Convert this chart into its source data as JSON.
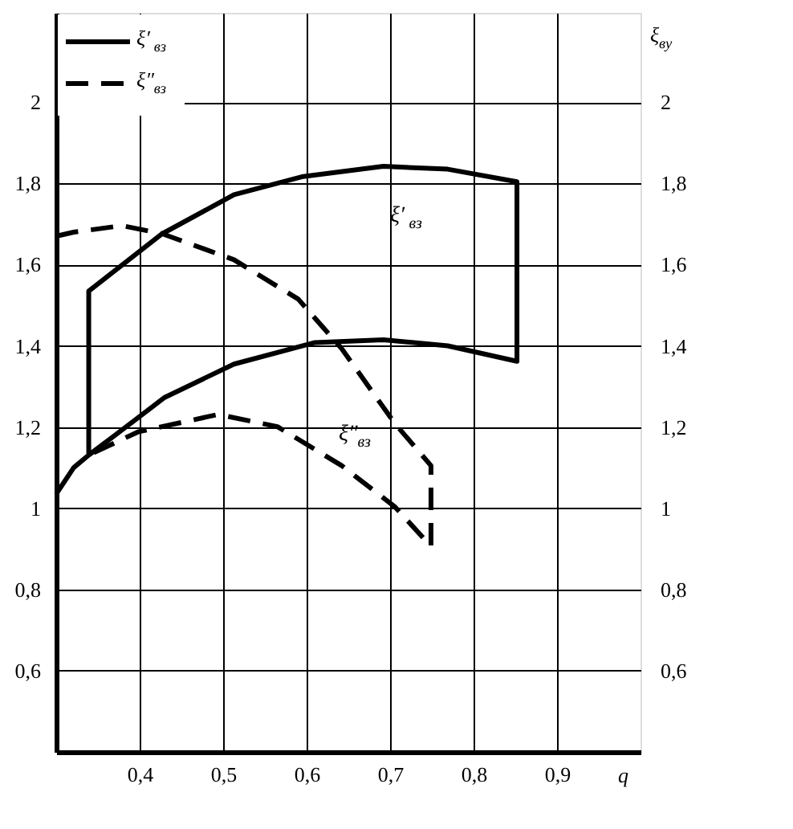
{
  "chart_data": {
    "type": "line",
    "xlabel": "q",
    "y2label": "ξ$_{ву}$",
    "xlim": [
      0.3,
      1.0
    ],
    "ylim": [
      0.4,
      2.22
    ],
    "y2lim": [
      0.4,
      2.22
    ],
    "xticks": [
      {
        "value": 0.4,
        "label": "0,4"
      },
      {
        "value": 0.5,
        "label": "0,5"
      },
      {
        "value": 0.6,
        "label": "0,6"
      },
      {
        "value": 0.7,
        "label": "0,7"
      },
      {
        "value": 0.8,
        "label": "0,8"
      },
      {
        "value": 0.9,
        "label": "0,9"
      }
    ],
    "yticks": [
      {
        "value": 0.6,
        "label": "0,6"
      },
      {
        "value": 0.8,
        "label": "0,8"
      },
      1,
      {
        "value": 1.2,
        "label": "1,2"
      },
      {
        "value": 1.4,
        "label": "1,4"
      },
      {
        "value": 1.6,
        "label": "1,6"
      },
      {
        "value": 1.8,
        "label": "1,8"
      },
      2
    ],
    "y2ticks": [
      {
        "value": 0.6,
        "label": "0,6"
      },
      {
        "value": 0.8,
        "label": "0,8"
      },
      1,
      {
        "value": 1.2,
        "label": "1,2"
      },
      {
        "value": 1.4,
        "label": "1,4"
      },
      {
        "value": 1.6,
        "label": "1,6"
      },
      {
        "value": 1.8,
        "label": "1,8"
      },
      2
    ],
    "grid": true,
    "legend": "top left",
    "marker": "none",
    "series": [
      {
        "name": "ξ′$_{вз}$",
        "color": "#000000",
        "line_style": "solid",
        "x": [
          0.3,
          0.321,
          0.339,
          0.339,
          0.427,
          0.513,
          0.596,
          0.692,
          0.769,
          0.852,
          0.852,
          0.769,
          0.692,
          0.61,
          0.513,
          0.43,
          0.372,
          0.339
        ],
        "values": [
          1.035,
          1.1,
          1.131,
          1.535,
          1.676,
          1.772,
          1.817,
          1.842,
          1.835,
          1.804,
          1.362,
          1.4,
          1.415,
          1.408,
          1.355,
          1.273,
          1.182,
          1.131
        ]
      },
      {
        "name": "ξ″$_{вз}$",
        "color": "#000000",
        "line_style": "dashed",
        "x": [
          0.3,
          0.321,
          0.379,
          0.427,
          0.513,
          0.59,
          0.642,
          0.706,
          0.749,
          0.749,
          0.706,
          0.642,
          0.565,
          0.494,
          0.398,
          0.339
        ],
        "values": [
          1.67,
          1.68,
          1.696,
          1.676,
          1.612,
          1.515,
          1.393,
          1.208,
          1.105,
          0.906,
          1.003,
          1.105,
          1.201,
          1.231,
          1.188,
          1.131
        ]
      }
    ],
    "annotations": [
      "ξ′$_{вз}$",
      "ξ″$_{вз}$"
    ]
  }
}
